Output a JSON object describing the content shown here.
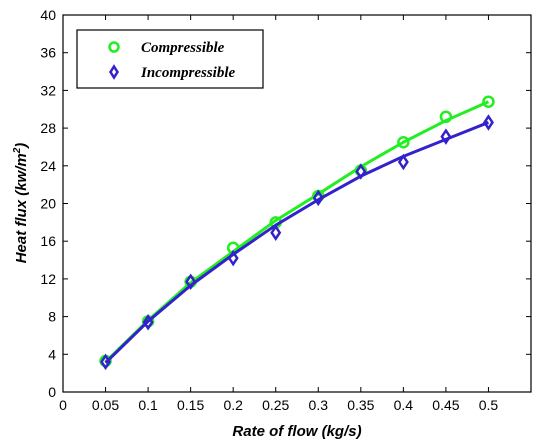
{
  "chart_data": {
    "type": "line",
    "title": "",
    "xlabel": "Rate of flow (kg/s)",
    "ylabel": "Heat flux (kw/m",
    "ylabel_sup": "2",
    "ylabel_tail": ")",
    "xlim": [
      0,
      0.55
    ],
    "ylim": [
      0,
      40
    ],
    "x_ticks": [
      "0",
      "0.05",
      "0.1",
      "0.15",
      "0.2",
      "0.25",
      "0.3",
      "0.35",
      "0.4",
      "0.45",
      "0.5"
    ],
    "y_ticks": [
      "0",
      "4",
      "8",
      "12",
      "16",
      "20",
      "24",
      "28",
      "32",
      "36",
      "40"
    ],
    "grid": false,
    "legend_position": "top-left",
    "x": [
      0.05,
      0.1,
      0.15,
      0.2,
      0.25,
      0.3,
      0.35,
      0.4,
      0.45,
      0.5
    ],
    "series": [
      {
        "name": "Compressible",
        "marker": "circle",
        "color": "#22ee22",
        "values": [
          3.3,
          7.5,
          11.7,
          15.3,
          18.0,
          20.8,
          23.5,
          26.5,
          29.2,
          30.8
        ],
        "fit": [
          3.2,
          7.6,
          11.6,
          14.9,
          18.2,
          21.0,
          23.9,
          26.5,
          28.8,
          30.8
        ]
      },
      {
        "name": "Incompressible",
        "marker": "diamond",
        "color": "#3322cc",
        "values": [
          3.2,
          7.4,
          11.7,
          14.2,
          16.9,
          20.6,
          23.4,
          24.4,
          27.1,
          28.6
        ],
        "fit": [
          3.1,
          7.5,
          11.3,
          14.6,
          17.7,
          20.4,
          22.9,
          25.0,
          26.8,
          28.6
        ]
      }
    ]
  }
}
